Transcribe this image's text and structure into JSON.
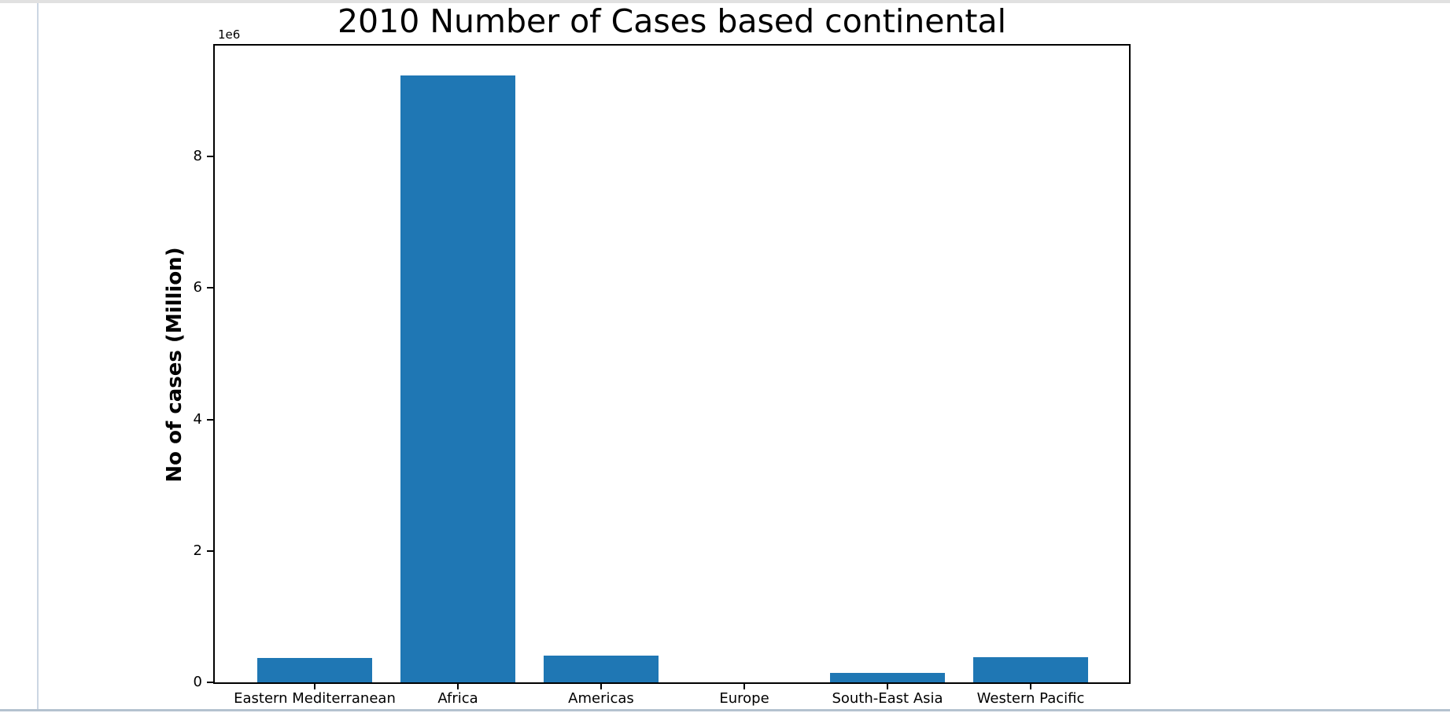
{
  "chrome": {
    "top_strip_color": "#e1e1e1",
    "cell_left_border_color": "#ccd6e3",
    "bottom_border_color": "#b4c2cf",
    "background_color": "#ffffff"
  },
  "chart_data": {
    "type": "bar",
    "title": "2010 Number of Cases based continental",
    "ylabel": "No of cases (Million)",
    "xlabel": "",
    "offset_text": "1e6",
    "categories": [
      "Eastern Mediterranean",
      "Africa",
      "Americas",
      "Europe",
      "South-East Asia",
      "Western Pacific"
    ],
    "values": [
      370000,
      9230000,
      410000,
      0,
      140000,
      380000
    ],
    "bar_color": "#1f77b4",
    "text_color": "#000000",
    "ylim": [
      0,
      9690000
    ],
    "yticks": {
      "values": [
        0,
        2000000,
        4000000,
        6000000,
        8000000
      ],
      "labels": [
        "0",
        "2",
        "4",
        "6",
        "8"
      ]
    },
    "grid": false,
    "legend_position": "none"
  }
}
